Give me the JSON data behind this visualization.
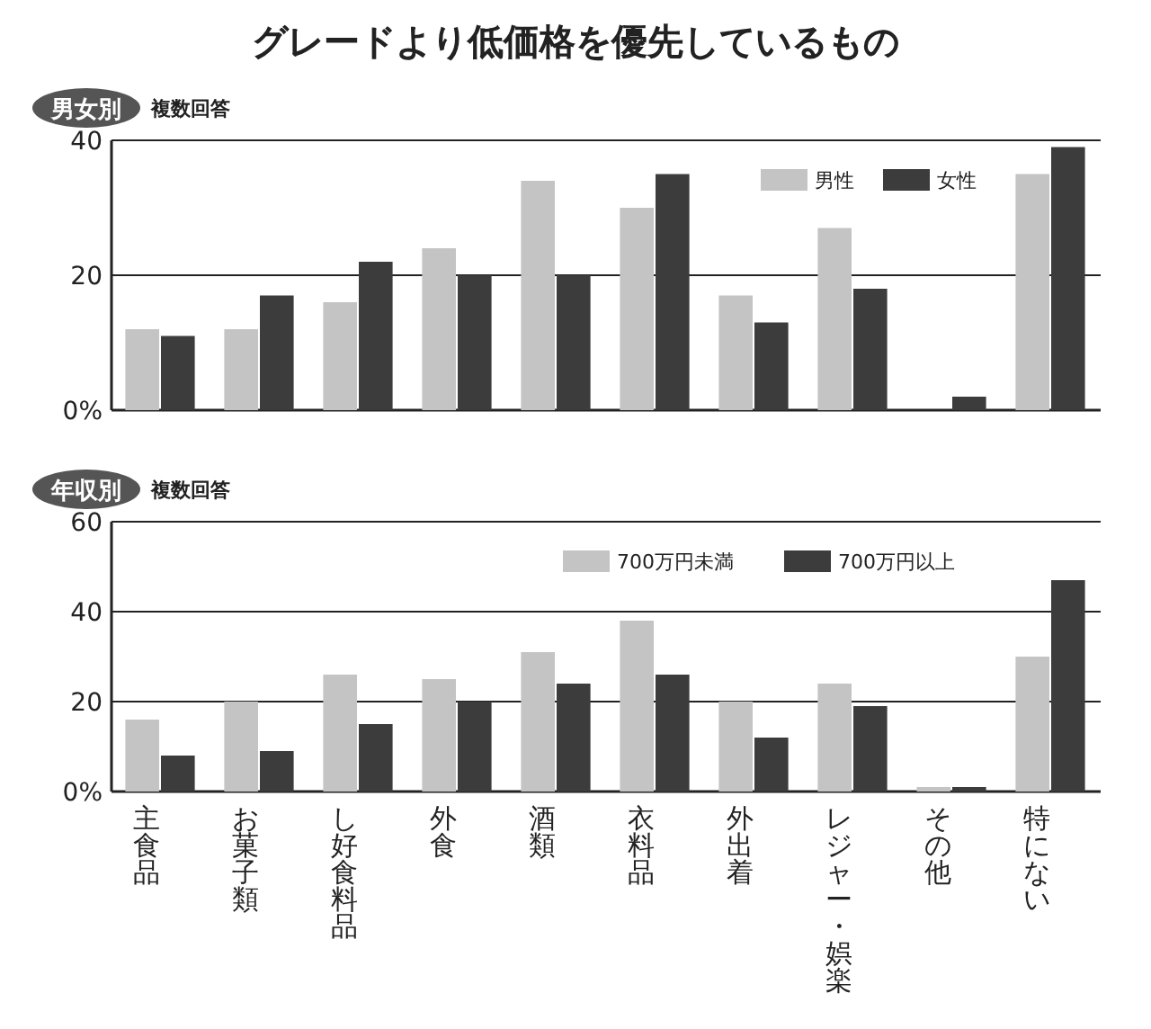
{
  "chart_data": [
    {
      "type": "bar",
      "title": "グレードより低価格を優先しているもの",
      "subtitle": "男女別",
      "annotations": [
        "複数回答"
      ],
      "categories": [
        null,
        null,
        null,
        null,
        null,
        null,
        null,
        null,
        null,
        null
      ],
      "series": [
        {
          "name": "男性",
          "color": "#c4c4c4",
          "values": [
            12,
            12,
            16,
            24,
            34,
            30,
            17,
            27,
            0,
            35
          ]
        },
        {
          "name": "女性",
          "color": "#3c3c3c",
          "values": [
            11,
            17,
            22,
            20,
            20,
            35,
            13,
            18,
            2,
            39
          ]
        }
      ],
      "ylim": [
        0,
        40
      ],
      "yticks": [
        {
          "value": 0,
          "label": "0%"
        },
        20,
        40
      ],
      "grid": "y",
      "legend": "top right",
      "tick_labels": "y"
    },
    {
      "type": "bar",
      "subtitle": "年収別",
      "annotations": [
        "複数回答"
      ],
      "categories": [
        "主食品",
        "お菓子類",
        "し好食料品",
        "外食",
        "酒類",
        "衣料品",
        "外出着",
        "レジャー・娯楽",
        "その他",
        "特にない"
      ],
      "series": [
        {
          "name": "700万円未満",
          "color": "#c4c4c4",
          "values": [
            16,
            20,
            26,
            25,
            31,
            38,
            20,
            24,
            1,
            30
          ]
        },
        {
          "name": "700万円以上",
          "color": "#3c3c3c",
          "values": [
            8,
            9,
            15,
            20,
            24,
            26,
            12,
            19,
            1,
            47
          ]
        }
      ],
      "ylim": [
        0,
        60
      ],
      "yticks": [
        {
          "value": 0,
          "label": "0%"
        },
        20,
        40,
        60
      ],
      "grid": "y",
      "legend": "top right"
    }
  ]
}
